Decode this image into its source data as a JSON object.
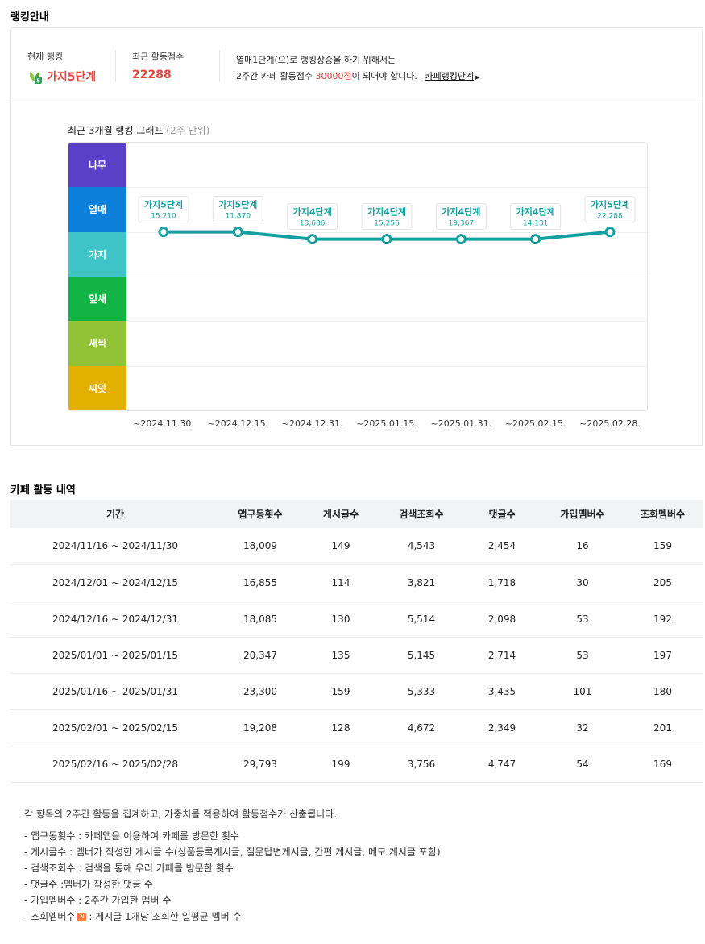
{
  "page_title": "랭킹안내",
  "summary": {
    "current_rank_label": "현재 랭킹",
    "current_rank_value": "가지5단계",
    "recent_score_label": "최근 활동점수",
    "recent_score_value": "22288",
    "notice_line1": "열매1단계(으)로 랭킹상승을 하기 위해서는",
    "notice_line2_prefix": "2주간 카페 활동점수 ",
    "notice_line2_required": "30000점",
    "notice_line2_suffix": "이 되어야 합니다.",
    "notice_link": "카페랭킹단계",
    "rank_icon": "sprout-grade-icon",
    "accent_color": "#e7433c"
  },
  "graph": {
    "title": "최근 3개월 랭킹 그래프",
    "title_sub": "(2주 단위)"
  },
  "chart_data": {
    "type": "line",
    "levels": [
      {
        "name": "나무",
        "color": "#5a3fc9"
      },
      {
        "name": "열매",
        "color": "#0b7fd9"
      },
      {
        "name": "가지",
        "color": "#3fc4c7"
      },
      {
        "name": "잎새",
        "color": "#12b446"
      },
      {
        "name": "새싹",
        "color": "#92c236"
      },
      {
        "name": "씨앗",
        "color": "#e2b100"
      }
    ],
    "line_color": "#14a0a0",
    "x": [
      "~2024.11.30.",
      "~2024.12.15.",
      "~2024.12.31.",
      "~2025.01.15.",
      "~2025.01.31.",
      "~2025.02.15.",
      "~2025.02.28."
    ],
    "points": [
      {
        "grade": "가지5단계",
        "score": "15,210",
        "position": 5
      },
      {
        "grade": "가지5단계",
        "score": "11,870",
        "position": 5
      },
      {
        "grade": "가지4단계",
        "score": "13,686",
        "position": 4
      },
      {
        "grade": "가지4단계",
        "score": "15,256",
        "position": 4
      },
      {
        "grade": "가지4단계",
        "score": "19,367",
        "position": 4
      },
      {
        "grade": "가지4단계",
        "score": "14,131",
        "position": 4
      },
      {
        "grade": "가지5단계",
        "score": "22,288",
        "position": 5
      }
    ]
  },
  "activity": {
    "title": "카페 활동 내역",
    "columns": [
      "기간",
      "앱구동횟수",
      "게시글수",
      "검색조회수",
      "댓글수",
      "가입멤버수",
      "조회멤버수"
    ],
    "rows": [
      [
        "2024/11/16 ~ 2024/11/30",
        "18,009",
        "149",
        "4,543",
        "2,454",
        "16",
        "159"
      ],
      [
        "2024/12/01 ~ 2024/12/15",
        "16,855",
        "114",
        "3,821",
        "1,718",
        "30",
        "205"
      ],
      [
        "2024/12/16 ~ 2024/12/31",
        "18,085",
        "130",
        "5,514",
        "2,098",
        "53",
        "192"
      ],
      [
        "2025/01/01 ~ 2025/01/15",
        "20,347",
        "135",
        "5,145",
        "2,714",
        "53",
        "197"
      ],
      [
        "2025/01/16 ~ 2025/01/31",
        "23,300",
        "159",
        "5,333",
        "3,435",
        "101",
        "180"
      ],
      [
        "2025/02/01 ~ 2025/02/15",
        "19,208",
        "128",
        "4,672",
        "2,349",
        "32",
        "201"
      ],
      [
        "2025/02/16 ~ 2025/02/28",
        "29,793",
        "199",
        "3,756",
        "4,747",
        "54",
        "169"
      ]
    ]
  },
  "description": {
    "lead": "각 항목의 2주간 활동을 집계하고, 가중치를 적용하여 활동점수가 산출됩니다.",
    "items": [
      "- 앱구동횟수 : 카페앱을 이용하여 카페를 방문한 횟수",
      "- 게시글수 : 멤버가 작성한 게시글 수(상품등록게시글, 질문답변게시글, 간편 게시글, 메모 게시글 포함)",
      "- 검색조회수 : 검색을 통해 우리 카페를 방문한 횟수",
      "- 댓글수 :멤버가 작성한 댓글 수",
      "- 가입멤버수 : 2주간 가입한 멤버 수"
    ],
    "last_item_prefix": "- 조회멤버수",
    "last_item_badge": "N",
    "last_item_suffix": ": 게시글 1개당 조회한 일평균 멤버 수"
  }
}
